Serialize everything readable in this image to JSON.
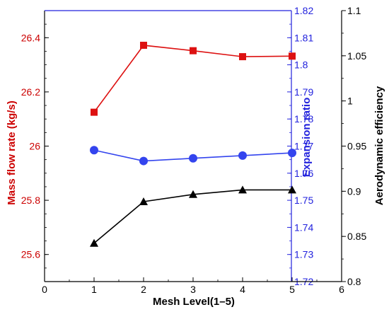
{
  "chart_data": {
    "type": "line",
    "xlabel": "Mesh Level(1–5)",
    "xlim": [
      0,
      6
    ],
    "x": [
      1,
      2,
      3,
      4,
      5
    ],
    "x_ticks": [
      "0",
      "1",
      "2",
      "3",
      "4",
      "5",
      "6"
    ],
    "axes": {
      "left": {
        "label": "Mass flow rate  (kg/s)",
        "ylim": [
          25.5,
          26.5
        ],
        "ticks": [
          "25.6",
          "25.8",
          "26",
          "26.2",
          "26.4"
        ],
        "color": "#cc0000"
      },
      "right_inner": {
        "label": "Expansion ratio",
        "ylim": [
          1.72,
          1.82
        ],
        "ticks": [
          "1.72",
          "1.73",
          "1.74",
          "1.75",
          "1.76",
          "1.77",
          "1.78",
          "1.79",
          "1.8",
          "1.81",
          "1.82"
        ],
        "color": "#2222dd"
      },
      "right_outer": {
        "label": "Aerodynamic efficiency",
        "ylim": [
          0.8,
          1.1
        ],
        "ticks": [
          "0.8",
          "0.85",
          "0.9",
          "0.95",
          "1",
          "1.05",
          "1.1"
        ],
        "color": "#000000"
      }
    },
    "series": [
      {
        "axis": "left",
        "marker": "square",
        "color": "#dd1111",
        "values": [
          26.125,
          26.372,
          26.352,
          26.33,
          26.332
        ]
      },
      {
        "axis": "right_inner",
        "marker": "circle",
        "color": "#3344ee",
        "values": [
          1.7685,
          1.7645,
          1.7655,
          1.7665,
          1.7675
        ]
      },
      {
        "axis": "right_outer",
        "marker": "triangle",
        "color": "#000000",
        "values": [
          0.8425,
          0.8885,
          0.8965,
          0.9015,
          0.9015
        ]
      }
    ],
    "grid": false
  }
}
